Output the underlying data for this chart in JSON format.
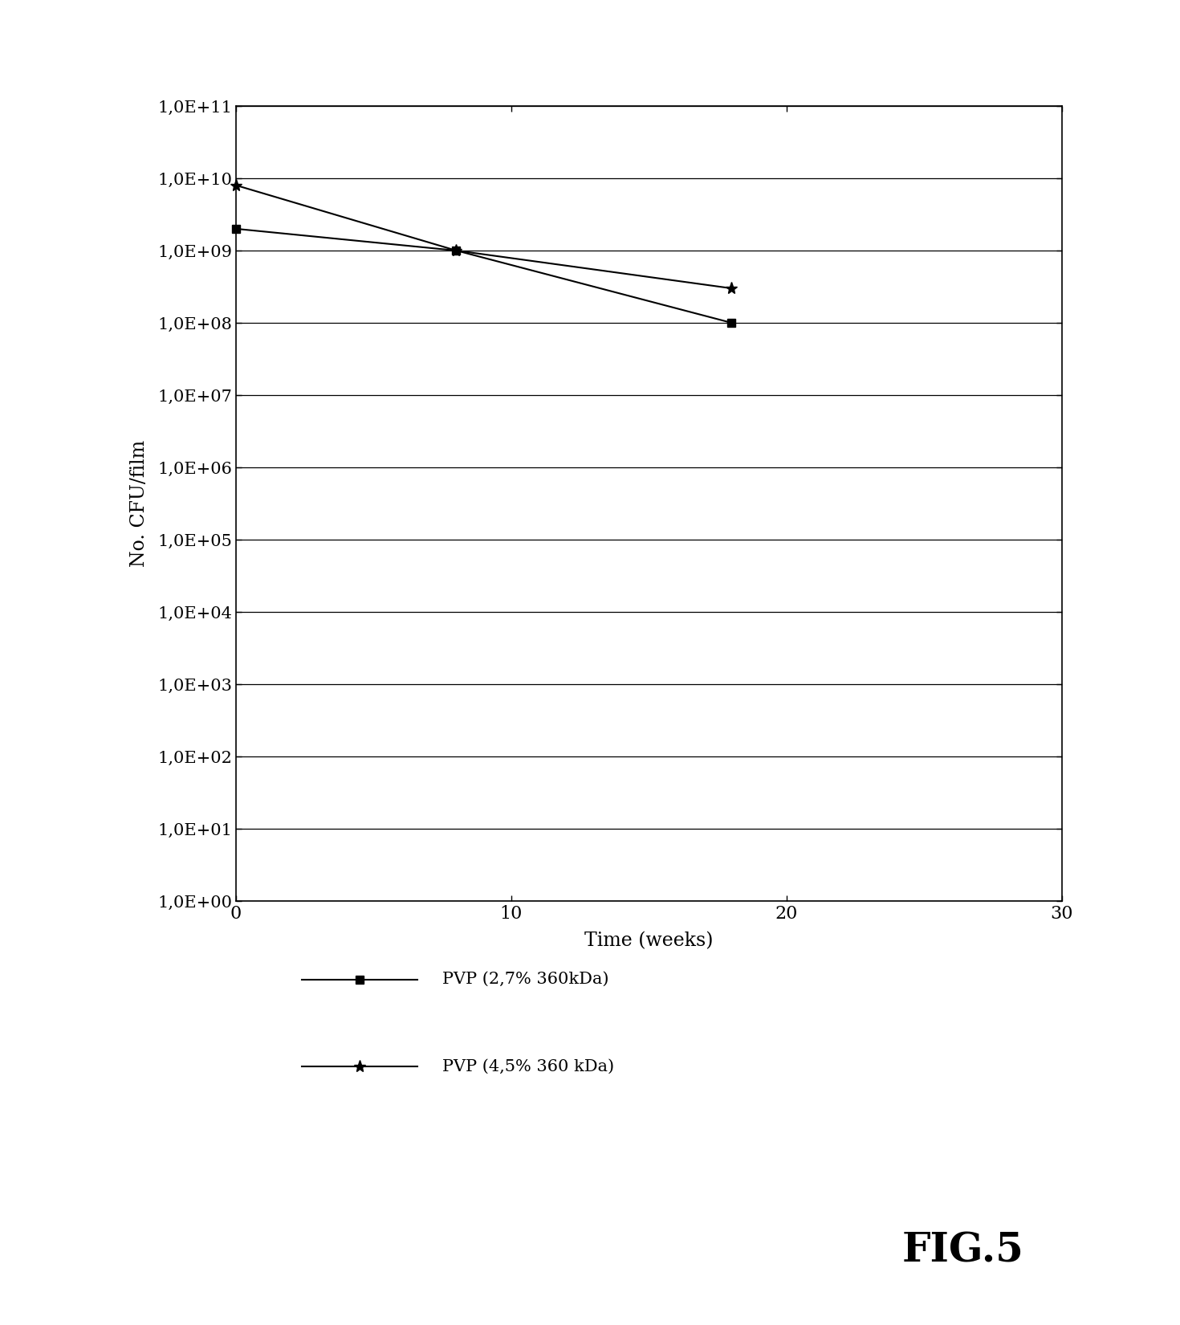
{
  "series1": {
    "x": [
      0,
      8,
      18
    ],
    "y": [
      2000000000.0,
      1000000000.0,
      100000000.0
    ],
    "label": "PVP (2,7% 360kDa)",
    "color": "#000000",
    "marker": "s",
    "markersize": 7
  },
  "series2": {
    "x": [
      0,
      8,
      18
    ],
    "y": [
      8000000000.0,
      1000000000.0,
      300000000.0
    ],
    "label": "PVP (4,5% 360 kDa)",
    "color": "#000000",
    "marker": "*",
    "markersize": 11
  },
  "xlabel": "Time (weeks)",
  "ylabel": "No. CFU/film",
  "xlim": [
    0,
    30
  ],
  "xticks": [
    0,
    10,
    20,
    30
  ],
  "fig_title": "FIG.5",
  "background_color": "#ffffff",
  "ytick_labels": [
    "1,0E+00",
    "1,0E+01",
    "1,0E+02",
    "1,0E+03",
    "1,0E+04",
    "1,0E+05",
    "1,0E+06",
    "1,0E+07",
    "1,0E+08",
    "1,0E+09",
    "1,0E+10",
    "1,0E+11"
  ]
}
